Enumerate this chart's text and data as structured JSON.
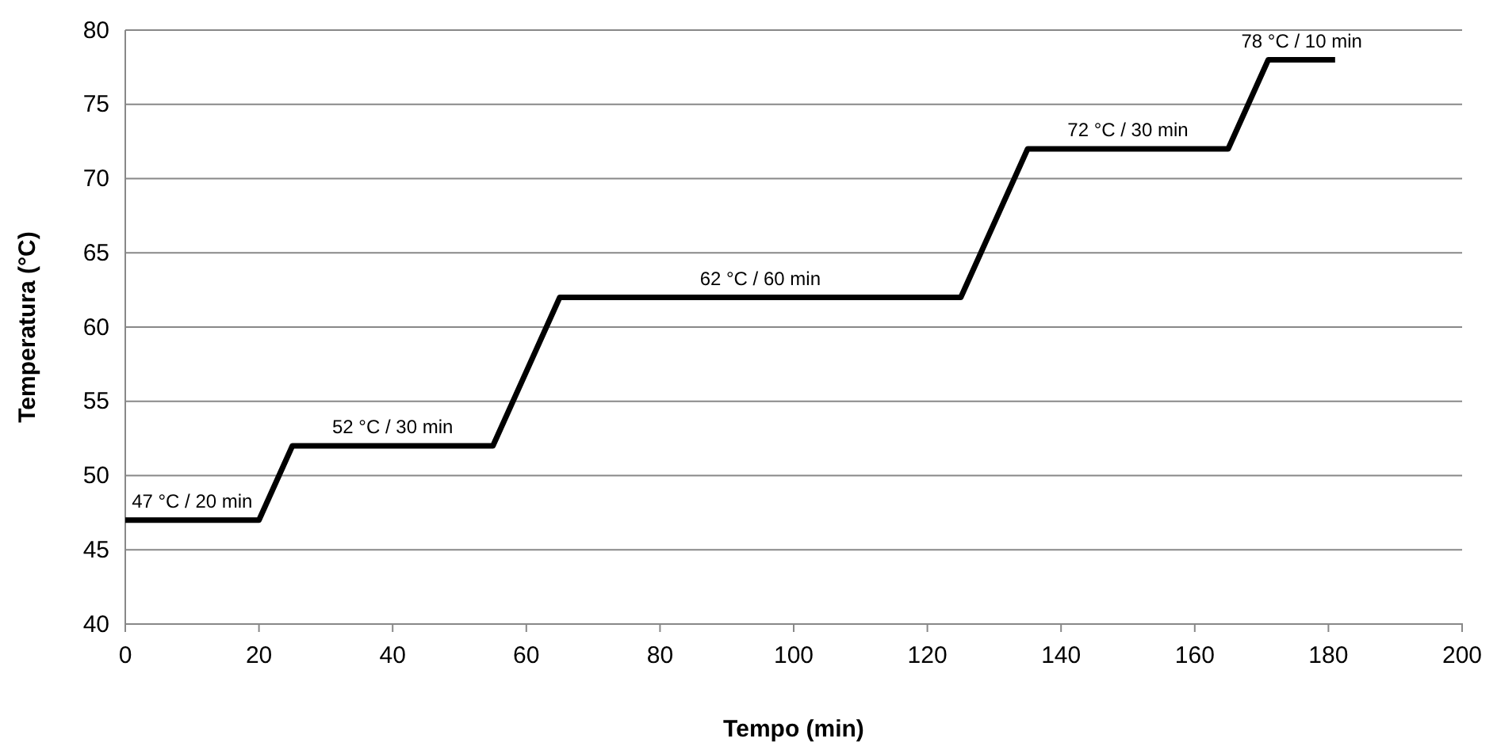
{
  "chart_data": {
    "type": "line",
    "xlabel": "Tempo (min)",
    "ylabel": "Temperatura (°C)",
    "x": [
      0,
      20,
      25,
      55,
      65,
      125,
      135,
      165,
      171,
      181
    ],
    "series": [
      {
        "color": "#000000",
        "values": [
          47,
          47,
          52,
          52,
          62,
          62,
          72,
          72,
          78,
          78
        ]
      }
    ],
    "xlim": [
      0,
      200
    ],
    "xticks": [
      0,
      20,
      40,
      60,
      80,
      100,
      120,
      140,
      160,
      180,
      200
    ],
    "ylim": [
      40,
      80
    ],
    "yticks": [
      40,
      45,
      50,
      55,
      60,
      65,
      70,
      75,
      80
    ],
    "grid": "y",
    "marker": "none",
    "line_style": "solid",
    "annotations": [
      {
        "text": "47 °C / 20 min",
        "x": 10,
        "y": 47
      },
      {
        "text": "52 °C / 30 min",
        "x": 40,
        "y": 52
      },
      {
        "text": "62 °C / 60 min",
        "x": 95,
        "y": 62
      },
      {
        "text": "72 °C / 30 min",
        "x": 150,
        "y": 72
      },
      {
        "text": "78 °C / 10 min",
        "x": 176,
        "y": 78
      }
    ]
  }
}
